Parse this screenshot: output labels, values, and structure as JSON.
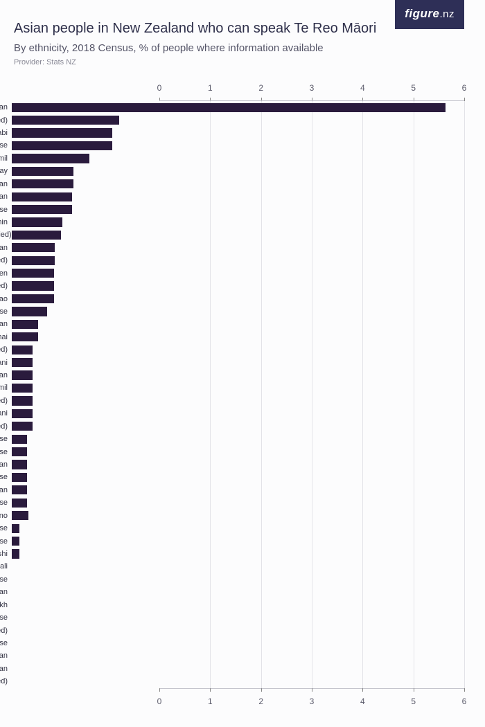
{
  "logo": {
    "text": "figure",
    "suffix": ".nz"
  },
  "title": "Asian people in New Zealand who can speak Te Reo Māori",
  "subtitle": "By ethnicity, 2018 Census, % of people where information available",
  "provider": "Provider: Stats NZ",
  "chart": {
    "type": "bar",
    "orientation": "horizontal",
    "xmin": 0,
    "xmax": 6,
    "xtick_step": 1,
    "xticks": [
      0,
      1,
      2,
      3,
      4,
      5,
      6
    ],
    "bar_color": "#2a1b3d",
    "grid_color": "#e3e3e8",
    "axis_color": "#c4c4cc",
    "background_color": "#fcfcfd",
    "label_fontsize": 11,
    "tick_fontsize": 12,
    "series": [
      {
        "label": "Tibetan",
        "value": 5.75
      },
      {
        "label": "Chinese (not elsewhere classified)",
        "value": 1.42
      },
      {
        "label": "Punjabi",
        "value": 1.33
      },
      {
        "label": "Singaporean Chinese",
        "value": 1.33
      },
      {
        "label": "Indian Tamil",
        "value": 1.03
      },
      {
        "label": "Malay",
        "value": 0.82
      },
      {
        "label": "Fijian Indian",
        "value": 0.82
      },
      {
        "label": "Anglo Indian",
        "value": 0.8
      },
      {
        "label": "Japanese",
        "value": 0.8
      },
      {
        "label": "Chin",
        "value": 0.67
      },
      {
        "label": "Southeast Asian (not elsewhere classified)",
        "value": 0.65
      },
      {
        "label": "Eurasian",
        "value": 0.57
      },
      {
        "label": "Chinese (not further defined)",
        "value": 0.57
      },
      {
        "label": "Karen",
        "value": 0.56
      },
      {
        "label": "Indian (not further defined)",
        "value": 0.56
      },
      {
        "label": "Lao",
        "value": 0.56
      },
      {
        "label": "Burmese",
        "value": 0.47
      },
      {
        "label": "South African Indian",
        "value": 0.35
      },
      {
        "label": "Thai",
        "value": 0.35
      },
      {
        "label": "Asian (not further defined)",
        "value": 0.28
      },
      {
        "label": "Afghani",
        "value": 0.28
      },
      {
        "label": "Cambodian",
        "value": 0.28
      },
      {
        "label": "Sri Lankan Tamil",
        "value": 0.28
      },
      {
        "label": "Southeast Asian (not further defined)",
        "value": 0.28
      },
      {
        "label": "Pakistani",
        "value": 0.28
      },
      {
        "label": "Sri Lankan (not further defined)",
        "value": 0.28
      },
      {
        "label": "Taiwanese",
        "value": 0.2
      },
      {
        "label": "Malaysian Chinese",
        "value": 0.2
      },
      {
        "label": "Korean",
        "value": 0.2
      },
      {
        "label": "Nepalese",
        "value": 0.2
      },
      {
        "label": "Indonesian",
        "value": 0.2
      },
      {
        "label": "Vietnamese",
        "value": 0.2
      },
      {
        "label": "Filipino",
        "value": 0.22
      },
      {
        "label": "Hong Kong Chinese",
        "value": 0.1
      },
      {
        "label": "Sinhalese",
        "value": 0.1
      },
      {
        "label": "Bangladeshi",
        "value": 0.1
      },
      {
        "label": "Bengali",
        "value": 0.0
      },
      {
        "label": "Vietnamese Chinese",
        "value": 0.0
      },
      {
        "label": "Malaysian Indian",
        "value": 0.0
      },
      {
        "label": "Sikh",
        "value": 0.0
      },
      {
        "label": "Cambodian Chinese",
        "value": 0.0
      },
      {
        "label": "Indian (not elsewhere classified)",
        "value": 0.0
      },
      {
        "label": "Bhutanese",
        "value": 0.0
      },
      {
        "label": "Maldivian",
        "value": 0.0
      },
      {
        "label": "Mongolian",
        "value": 0.0
      },
      {
        "label": "Asian (not elsewhere classified)",
        "value": 0.0
      }
    ]
  }
}
